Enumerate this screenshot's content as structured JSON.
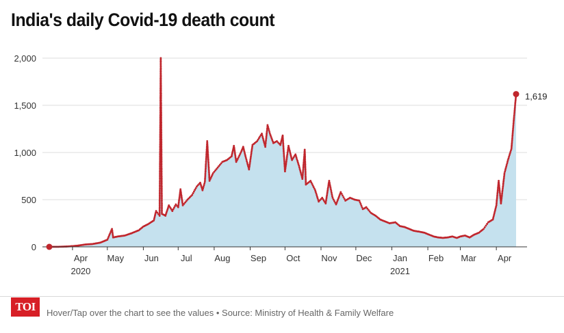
{
  "title": "India's daily Covid-19 death count",
  "footer": {
    "logo_text": "TOI",
    "note": "Hover/Tap over the chart to see the values • Source: Ministry of Health & Family Welfare"
  },
  "colors": {
    "line": "#c0262d",
    "area": "#c5e1ee",
    "grid": "#dddddd",
    "logo": "#d71f26"
  },
  "chart_data": {
    "type": "area",
    "title": "India's daily Covid-19 death count",
    "xlabel": "",
    "ylabel": "",
    "ylim": [
      0,
      2000
    ],
    "grid": true,
    "y_ticks": [
      0,
      500,
      1000,
      1500,
      2000
    ],
    "y_tick_labels": [
      "0",
      "500",
      "1,000",
      "1,500",
      "2,000"
    ],
    "x_ticks": [
      {
        "date": "2020-04-01",
        "label": "Apr",
        "year": "2020"
      },
      {
        "date": "2020-05-01",
        "label": "May"
      },
      {
        "date": "2020-06-01",
        "label": "Jun"
      },
      {
        "date": "2020-07-01",
        "label": "Jul"
      },
      {
        "date": "2020-08-01",
        "label": "Aug"
      },
      {
        "date": "2020-09-01",
        "label": "Sep"
      },
      {
        "date": "2020-10-01",
        "label": "Oct"
      },
      {
        "date": "2020-11-01",
        "label": "Nov"
      },
      {
        "date": "2020-12-01",
        "label": "Dec"
      },
      {
        "date": "2021-01-01",
        "label": "Jan",
        "year": "2021"
      },
      {
        "date": "2021-02-01",
        "label": "Feb"
      },
      {
        "date": "2021-03-01",
        "label": "Mar"
      },
      {
        "date": "2021-04-01",
        "label": "Apr"
      }
    ],
    "series": [
      {
        "points": [
          [
            "2020-03-12",
            0
          ],
          [
            "2020-03-20",
            1
          ],
          [
            "2020-03-28",
            4
          ],
          [
            "2020-04-05",
            12
          ],
          [
            "2020-04-12",
            25
          ],
          [
            "2020-04-18",
            30
          ],
          [
            "2020-04-25",
            45
          ],
          [
            "2020-05-01",
            75
          ],
          [
            "2020-05-05",
            190
          ],
          [
            "2020-05-06",
            100
          ],
          [
            "2020-05-10",
            110
          ],
          [
            "2020-05-16",
            120
          ],
          [
            "2020-05-22",
            145
          ],
          [
            "2020-05-28",
            175
          ],
          [
            "2020-06-01",
            215
          ],
          [
            "2020-06-05",
            240
          ],
          [
            "2020-06-10",
            280
          ],
          [
            "2020-06-12",
            380
          ],
          [
            "2020-06-15",
            330
          ],
          [
            "2020-06-16",
            2000
          ],
          [
            "2020-06-17",
            350
          ],
          [
            "2020-06-20",
            330
          ],
          [
            "2020-06-23",
            440
          ],
          [
            "2020-06-26",
            380
          ],
          [
            "2020-06-29",
            450
          ],
          [
            "2020-07-01",
            420
          ],
          [
            "2020-07-03",
            610
          ],
          [
            "2020-07-05",
            440
          ],
          [
            "2020-07-09",
            500
          ],
          [
            "2020-07-13",
            550
          ],
          [
            "2020-07-17",
            640
          ],
          [
            "2020-07-20",
            680
          ],
          [
            "2020-07-22",
            600
          ],
          [
            "2020-07-24",
            690
          ],
          [
            "2020-07-26",
            1120
          ],
          [
            "2020-07-28",
            700
          ],
          [
            "2020-07-31",
            780
          ],
          [
            "2020-08-04",
            840
          ],
          [
            "2020-08-08",
            900
          ],
          [
            "2020-08-12",
            920
          ],
          [
            "2020-08-16",
            960
          ],
          [
            "2020-08-18",
            1070
          ],
          [
            "2020-08-20",
            900
          ],
          [
            "2020-08-24",
            1000
          ],
          [
            "2020-08-26",
            1060
          ],
          [
            "2020-08-28",
            960
          ],
          [
            "2020-08-31",
            820
          ],
          [
            "2020-09-03",
            1080
          ],
          [
            "2020-09-07",
            1120
          ],
          [
            "2020-09-11",
            1200
          ],
          [
            "2020-09-14",
            1060
          ],
          [
            "2020-09-16",
            1290
          ],
          [
            "2020-09-18",
            1200
          ],
          [
            "2020-09-21",
            1100
          ],
          [
            "2020-09-24",
            1120
          ],
          [
            "2020-09-27",
            1080
          ],
          [
            "2020-09-29",
            1180
          ],
          [
            "2020-10-01",
            800
          ],
          [
            "2020-10-04",
            1070
          ],
          [
            "2020-10-07",
            920
          ],
          [
            "2020-10-10",
            980
          ],
          [
            "2020-10-13",
            860
          ],
          [
            "2020-10-16",
            720
          ],
          [
            "2020-10-18",
            1030
          ],
          [
            "2020-10-19",
            660
          ],
          [
            "2020-10-23",
            700
          ],
          [
            "2020-10-27",
            600
          ],
          [
            "2020-10-30",
            480
          ],
          [
            "2020-11-02",
            520
          ],
          [
            "2020-11-05",
            460
          ],
          [
            "2020-11-08",
            700
          ],
          [
            "2020-11-11",
            520
          ],
          [
            "2020-11-14",
            450
          ],
          [
            "2020-11-18",
            580
          ],
          [
            "2020-11-22",
            490
          ],
          [
            "2020-11-26",
            520
          ],
          [
            "2020-11-30",
            500
          ],
          [
            "2020-12-04",
            490
          ],
          [
            "2020-12-07",
            400
          ],
          [
            "2020-12-10",
            420
          ],
          [
            "2020-12-14",
            360
          ],
          [
            "2020-12-18",
            330
          ],
          [
            "2020-12-22",
            290
          ],
          [
            "2020-12-26",
            270
          ],
          [
            "2020-12-30",
            250
          ],
          [
            "2021-01-04",
            260
          ],
          [
            "2021-01-08",
            220
          ],
          [
            "2021-01-12",
            210
          ],
          [
            "2021-01-16",
            190
          ],
          [
            "2021-01-20",
            170
          ],
          [
            "2021-01-25",
            160
          ],
          [
            "2021-01-29",
            150
          ],
          [
            "2021-02-02",
            130
          ],
          [
            "2021-02-06",
            110
          ],
          [
            "2021-02-10",
            100
          ],
          [
            "2021-02-14",
            95
          ],
          [
            "2021-02-18",
            100
          ],
          [
            "2021-02-22",
            110
          ],
          [
            "2021-02-26",
            95
          ],
          [
            "2021-03-01",
            110
          ],
          [
            "2021-03-05",
            120
          ],
          [
            "2021-03-09",
            100
          ],
          [
            "2021-03-13",
            130
          ],
          [
            "2021-03-17",
            150
          ],
          [
            "2021-03-21",
            190
          ],
          [
            "2021-03-25",
            260
          ],
          [
            "2021-03-29",
            290
          ],
          [
            "2021-04-01",
            440
          ],
          [
            "2021-04-03",
            700
          ],
          [
            "2021-04-05",
            460
          ],
          [
            "2021-04-08",
            780
          ],
          [
            "2021-04-11",
            920
          ],
          [
            "2021-04-14",
            1040
          ],
          [
            "2021-04-16",
            1340
          ],
          [
            "2021-04-18",
            1619
          ]
        ]
      }
    ],
    "annotations": [
      {
        "date": "2021-04-18",
        "value": 1619,
        "label": "1,619"
      }
    ]
  }
}
